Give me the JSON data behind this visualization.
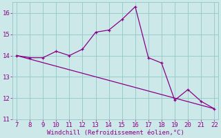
{
  "x": [
    7,
    8,
    9,
    10,
    11,
    12,
    13,
    14,
    15,
    16,
    17,
    18,
    19,
    20,
    21,
    22
  ],
  "y_main": [
    14.0,
    13.9,
    13.9,
    14.2,
    14.0,
    14.3,
    15.1,
    15.2,
    15.7,
    16.3,
    13.9,
    13.65,
    11.9,
    12.4,
    11.85,
    11.5
  ],
  "trend_x": [
    7,
    22
  ],
  "trend_y": [
    14.0,
    11.5
  ],
  "line_color": "#880088",
  "bg_color": "#cce8e8",
  "grid_color": "#99cccc",
  "text_color": "#880088",
  "xlabel": "Windchill (Refroidissement éolien,°C)",
  "ylim": [
    11,
    16.5
  ],
  "xlim": [
    6.7,
    22.3
  ],
  "yticks": [
    11,
    12,
    13,
    14,
    15,
    16
  ],
  "xticks": [
    7,
    8,
    9,
    10,
    11,
    12,
    13,
    14,
    15,
    16,
    17,
    18,
    19,
    20,
    21,
    22
  ],
  "font_family": "monospace",
  "tick_fontsize": 6.5,
  "xlabel_fontsize": 6.5
}
